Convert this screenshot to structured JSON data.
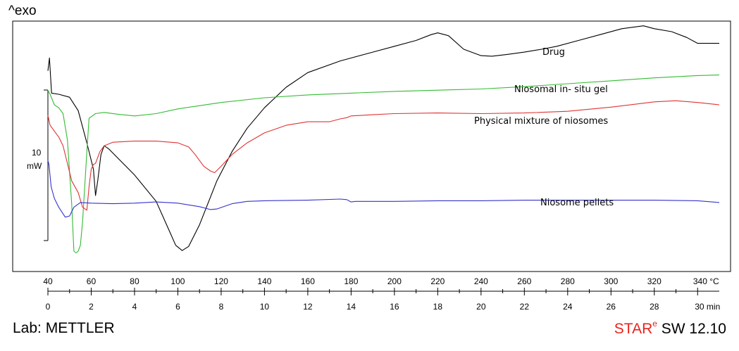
{
  "header": {
    "exo_label": "^exo"
  },
  "footer": {
    "lab_label": "Lab: METTLER",
    "software": {
      "prefix_red": "STAR",
      "superscript": "e",
      "suffix": " SW 12.10"
    }
  },
  "chart_data": {
    "type": "line",
    "title": "",
    "x_axis": {
      "temperature": {
        "range": [
          40,
          350
        ],
        "ticks": [
          40,
          60,
          80,
          100,
          120,
          140,
          160,
          180,
          200,
          220,
          240,
          260,
          280,
          300,
          320,
          340
        ],
        "unit": "°C"
      },
      "time": {
        "range": [
          0,
          31
        ],
        "ticks": [
          0,
          2,
          4,
          6,
          8,
          10,
          12,
          14,
          16,
          18,
          20,
          22,
          24,
          26,
          28,
          30
        ],
        "unit": "min"
      }
    },
    "y_axis": {
      "scale_bar_label_value": "10",
      "scale_bar_label_unit": "mW",
      "scale_bar_mw": 10,
      "range_mw": [
        -23,
        14.5
      ],
      "direction": "^exo"
    },
    "grid": false,
    "series": [
      {
        "name": "Drug",
        "color": "#000000",
        "points": [
          [
            40,
            7.8
          ],
          [
            40.7,
            10
          ],
          [
            41.7,
            4
          ],
          [
            45,
            3.8
          ],
          [
            50,
            3.3
          ],
          [
            54,
            1
          ],
          [
            58,
            -4.5
          ],
          [
            61,
            -9
          ],
          [
            62,
            -13.5
          ],
          [
            63,
            -11
          ],
          [
            64.5,
            -6.5
          ],
          [
            66,
            -5
          ],
          [
            68,
            -5.5
          ],
          [
            72,
            -7
          ],
          [
            80,
            -10
          ],
          [
            90,
            -14.5
          ],
          [
            96,
            -19.5
          ],
          [
            99,
            -22
          ],
          [
            102,
            -22.9
          ],
          [
            105,
            -22.2
          ],
          [
            110,
            -18.5
          ],
          [
            118,
            -11
          ],
          [
            125,
            -6
          ],
          [
            132,
            -2
          ],
          [
            140,
            1.5
          ],
          [
            150,
            5
          ],
          [
            160,
            7.5
          ],
          [
            175,
            9.5
          ],
          [
            190,
            11
          ],
          [
            200,
            12
          ],
          [
            210,
            13
          ],
          [
            217,
            14
          ],
          [
            220,
            14.3
          ],
          [
            225,
            13.8
          ],
          [
            232,
            11.5
          ],
          [
            240,
            10.4
          ],
          [
            245,
            10.3
          ],
          [
            252,
            10.6
          ],
          [
            260,
            11
          ],
          [
            268,
            11.5
          ],
          [
            275,
            12
          ],
          [
            285,
            13
          ],
          [
            295,
            14
          ],
          [
            305,
            15
          ],
          [
            315,
            15.5
          ],
          [
            320,
            15
          ],
          [
            328,
            14.5
          ],
          [
            335,
            13.5
          ],
          [
            340,
            12.5
          ],
          [
            345,
            12.5
          ],
          [
            350,
            12.5
          ]
        ]
      },
      {
        "name": "Niosomal in- situ gel",
        "color": "#33bb33",
        "points": [
          [
            40,
            4.5
          ],
          [
            41,
            3.8
          ],
          [
            43,
            2
          ],
          [
            45,
            1.5
          ],
          [
            47,
            0.5
          ],
          [
            49,
            -4
          ],
          [
            51,
            -15
          ],
          [
            52,
            -23
          ],
          [
            53,
            -23.3
          ],
          [
            54,
            -23
          ],
          [
            55,
            -22
          ],
          [
            56,
            -18
          ],
          [
            58,
            -6
          ],
          [
            59,
            -0.3
          ],
          [
            62,
            0.5
          ],
          [
            66,
            0.7
          ],
          [
            72,
            0.4
          ],
          [
            80,
            0.1
          ],
          [
            90,
            0.5
          ],
          [
            100,
            1.3
          ],
          [
            120,
            2.4
          ],
          [
            140,
            3.2
          ],
          [
            160,
            3.7
          ],
          [
            180,
            4
          ],
          [
            200,
            4.3
          ],
          [
            220,
            4.5
          ],
          [
            240,
            4.7
          ],
          [
            260,
            5.1
          ],
          [
            280,
            5.6
          ],
          [
            300,
            6.1
          ],
          [
            320,
            6.6
          ],
          [
            340,
            7
          ],
          [
            350,
            7.1
          ]
        ]
      },
      {
        "name": "Physical mixture of niosomes",
        "color": "#e03333",
        "points": [
          [
            40,
            0.2
          ],
          [
            41,
            -1.5
          ],
          [
            43,
            -2.5
          ],
          [
            45,
            -3.5
          ],
          [
            47,
            -5
          ],
          [
            49,
            -8
          ],
          [
            51,
            -11
          ],
          [
            54,
            -13
          ],
          [
            56,
            -15.5
          ],
          [
            58,
            -16
          ],
          [
            59,
            -12
          ],
          [
            60,
            -9
          ],
          [
            61,
            -8.2
          ],
          [
            62,
            -8
          ],
          [
            64,
            -6
          ],
          [
            66,
            -5
          ],
          [
            70,
            -4.4
          ],
          [
            80,
            -4.2
          ],
          [
            90,
            -4.2
          ],
          [
            100,
            -4.5
          ],
          [
            105,
            -5.2
          ],
          [
            108,
            -6.5
          ],
          [
            112,
            -8.5
          ],
          [
            115,
            -9.3
          ],
          [
            117,
            -9.6
          ],
          [
            120,
            -8.5
          ],
          [
            125,
            -6.5
          ],
          [
            132,
            -4.5
          ],
          [
            140,
            -2.8
          ],
          [
            150,
            -1.5
          ],
          [
            160,
            -0.9
          ],
          [
            170,
            -0.9
          ],
          [
            175,
            -0.4
          ],
          [
            178,
            -0.2
          ],
          [
            180,
            0.1
          ],
          [
            190,
            0.3
          ],
          [
            200,
            0.5
          ],
          [
            220,
            0.6
          ],
          [
            240,
            0.5
          ],
          [
            260,
            0.6
          ],
          [
            280,
            0.9
          ],
          [
            300,
            1.6
          ],
          [
            320,
            2.5
          ],
          [
            330,
            2.7
          ],
          [
            340,
            2.4
          ],
          [
            350,
            2.0
          ]
        ]
      },
      {
        "name": "Niosome pellets",
        "color": "#3333cc",
        "points": [
          [
            40,
            -7.5
          ],
          [
            40.5,
            -8.2
          ],
          [
            41.5,
            -12
          ],
          [
            43,
            -14
          ],
          [
            45,
            -15.5
          ],
          [
            48,
            -17.2
          ],
          [
            50,
            -17
          ],
          [
            52,
            -15.5
          ],
          [
            55,
            -14.7
          ],
          [
            60,
            -14.8
          ],
          [
            70,
            -14.9
          ],
          [
            80,
            -14.8
          ],
          [
            90,
            -14.6
          ],
          [
            100,
            -14.8
          ],
          [
            110,
            -15.4
          ],
          [
            115,
            -15.9
          ],
          [
            118,
            -15.8
          ],
          [
            125,
            -14.9
          ],
          [
            132,
            -14.5
          ],
          [
            140,
            -14.4
          ],
          [
            160,
            -14.3
          ],
          [
            175,
            -14.1
          ],
          [
            178,
            -14.2
          ],
          [
            180,
            -14.6
          ],
          [
            182,
            -14.5
          ],
          [
            200,
            -14.5
          ],
          [
            220,
            -14.4
          ],
          [
            240,
            -14.4
          ],
          [
            260,
            -14.3
          ],
          [
            280,
            -14.3
          ],
          [
            300,
            -14.3
          ],
          [
            320,
            -14.3
          ],
          [
            340,
            -14.4
          ],
          [
            350,
            -14.7
          ]
        ]
      }
    ],
    "labels": [
      {
        "series": "Drug",
        "text": "Drug"
      },
      {
        "series": "Niosomal in- situ gel",
        "text": "Niosomal in- situ gel"
      },
      {
        "series": "Physical mixture of niosomes",
        "text": "Physical mixture of niosomes"
      },
      {
        "series": "Niosome pellets",
        "text": "Niosome pellets"
      }
    ]
  }
}
